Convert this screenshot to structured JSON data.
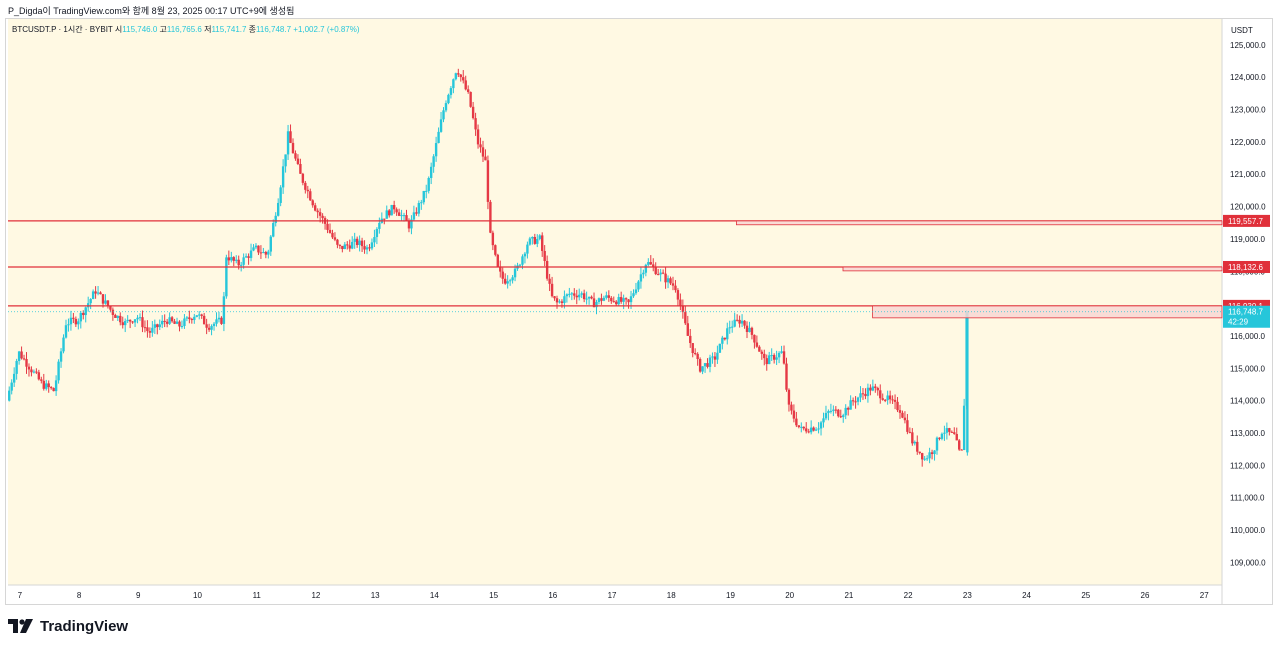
{
  "header": {
    "text": "P_Digda이 TradingView.com와 함께 8월 23, 2025 00:17 UTC+9에 생성됨"
  },
  "footer": {
    "brand": "TradingView",
    "logo_icon": "tradingview-logo-icon"
  },
  "colors": {
    "up": "#26c6da",
    "down": "#e53945",
    "bg": "#fff9e3",
    "line": "#e0303a",
    "zone": "#f8d7d4"
  },
  "chart_data": {
    "type": "candlestick",
    "symbol_line": {
      "symbol": "BTCUSDT.P · 1시간 · BYBIT",
      "open_label": "시",
      "open": "115,746.0",
      "high_label": "고",
      "high": "116,765.6",
      "low_label": "저",
      "low": "115,741.7",
      "close_label": "종",
      "close": "116,748.7",
      "change": "+1,002.7 (+0.87%)"
    },
    "currency": "USDT",
    "ylim": [
      108300,
      125800
    ],
    "y_ticks": [
      109000,
      110000,
      111000,
      112000,
      113000,
      114000,
      115000,
      116000,
      117000,
      118000,
      119000,
      120000,
      121000,
      122000,
      123000,
      124000,
      125000
    ],
    "y_tick_labels": [
      "109,000.0",
      "110,000.0",
      "111,000.0",
      "112,000.0",
      "113,000.0",
      "114,000.0",
      "115,000.0",
      "116,000.0",
      "117,000.0",
      "118,000.0",
      "119,000.0",
      "120,000.0",
      "121,000.0",
      "122,000.0",
      "123,000.0",
      "124,000.0",
      "125,000.0"
    ],
    "x_ticks": [
      7,
      8,
      9,
      10,
      11,
      12,
      13,
      14,
      15,
      16,
      17,
      18,
      19,
      20,
      21,
      22,
      23,
      24,
      25,
      26,
      27
    ],
    "x_tick_labels": [
      "7",
      "8",
      "9",
      "10",
      "11",
      "12",
      "13",
      "14",
      "15",
      "16",
      "17",
      "18",
      "19",
      "20",
      "21",
      "22",
      "23",
      "24",
      "25",
      "26",
      "27"
    ],
    "x_range": [
      6.8,
      27.3
    ],
    "last_day": 23.0,
    "path": [
      [
        6.8,
        114000
      ],
      [
        7.0,
        115500
      ],
      [
        7.4,
        114500
      ],
      [
        7.6,
        114300
      ],
      [
        7.8,
        116400
      ],
      [
        8.0,
        116500
      ],
      [
        8.3,
        117400
      ],
      [
        8.6,
        116700
      ],
      [
        8.8,
        116400
      ],
      [
        9.0,
        116600
      ],
      [
        9.2,
        116100
      ],
      [
        9.5,
        116500
      ],
      [
        9.7,
        116300
      ],
      [
        10.0,
        116700
      ],
      [
        10.2,
        116300
      ],
      [
        10.45,
        116500
      ],
      [
        10.5,
        118500
      ],
      [
        10.7,
        118200
      ],
      [
        11.0,
        118700
      ],
      [
        11.2,
        118500
      ],
      [
        11.4,
        120400
      ],
      [
        11.55,
        122200
      ],
      [
        11.75,
        121000
      ],
      [
        12.0,
        120000
      ],
      [
        12.2,
        119400
      ],
      [
        12.4,
        118700
      ],
      [
        12.7,
        118900
      ],
      [
        12.9,
        118700
      ],
      [
        13.1,
        119600
      ],
      [
        13.35,
        120000
      ],
      [
        13.6,
        119400
      ],
      [
        13.9,
        120600
      ],
      [
        14.2,
        123200
      ],
      [
        14.4,
        124300
      ],
      [
        14.6,
        123400
      ],
      [
        14.75,
        122000
      ],
      [
        14.9,
        121300
      ],
      [
        14.95,
        119200
      ],
      [
        15.1,
        118000
      ],
      [
        15.2,
        117700
      ],
      [
        15.4,
        118000
      ],
      [
        15.6,
        118900
      ],
      [
        15.8,
        119000
      ],
      [
        16.0,
        117200
      ],
      [
        16.1,
        117000
      ],
      [
        16.3,
        117300
      ],
      [
        16.5,
        117300
      ],
      [
        16.7,
        117000
      ],
      [
        16.9,
        117200
      ],
      [
        17.1,
        117100
      ],
      [
        17.3,
        117000
      ],
      [
        17.6,
        118300
      ],
      [
        17.9,
        117800
      ],
      [
        18.1,
        117500
      ],
      [
        18.3,
        116000
      ],
      [
        18.5,
        115000
      ],
      [
        18.75,
        115300
      ],
      [
        19.0,
        116300
      ],
      [
        19.2,
        116500
      ],
      [
        19.4,
        116000
      ],
      [
        19.6,
        115200
      ],
      [
        19.9,
        115500
      ],
      [
        20.0,
        113800
      ],
      [
        20.2,
        113100
      ],
      [
        20.5,
        113200
      ],
      [
        20.7,
        113700
      ],
      [
        20.9,
        113600
      ],
      [
        21.1,
        114000
      ],
      [
        21.4,
        114400
      ],
      [
        21.7,
        114000
      ],
      [
        21.9,
        113700
      ],
      [
        22.1,
        112700
      ],
      [
        22.3,
        112200
      ],
      [
        22.45,
        112500
      ],
      [
        22.6,
        113100
      ],
      [
        22.8,
        112900
      ],
      [
        22.9,
        112300
      ],
      [
        22.95,
        112500
      ],
      [
        23.0,
        116748.7
      ]
    ],
    "levels": [
      {
        "label": "119,557.7",
        "value": 119557.7,
        "zone_start": 19.1
      },
      {
        "label": "118,132.6",
        "value": 118132.6,
        "zone_start": 20.9
      },
      {
        "label": "116,930.1",
        "value": 116930.1,
        "zone_start": 21.4
      }
    ],
    "zone_low": 116560,
    "current_price": {
      "label": "116,748.7",
      "countdown": "42:29"
    }
  }
}
